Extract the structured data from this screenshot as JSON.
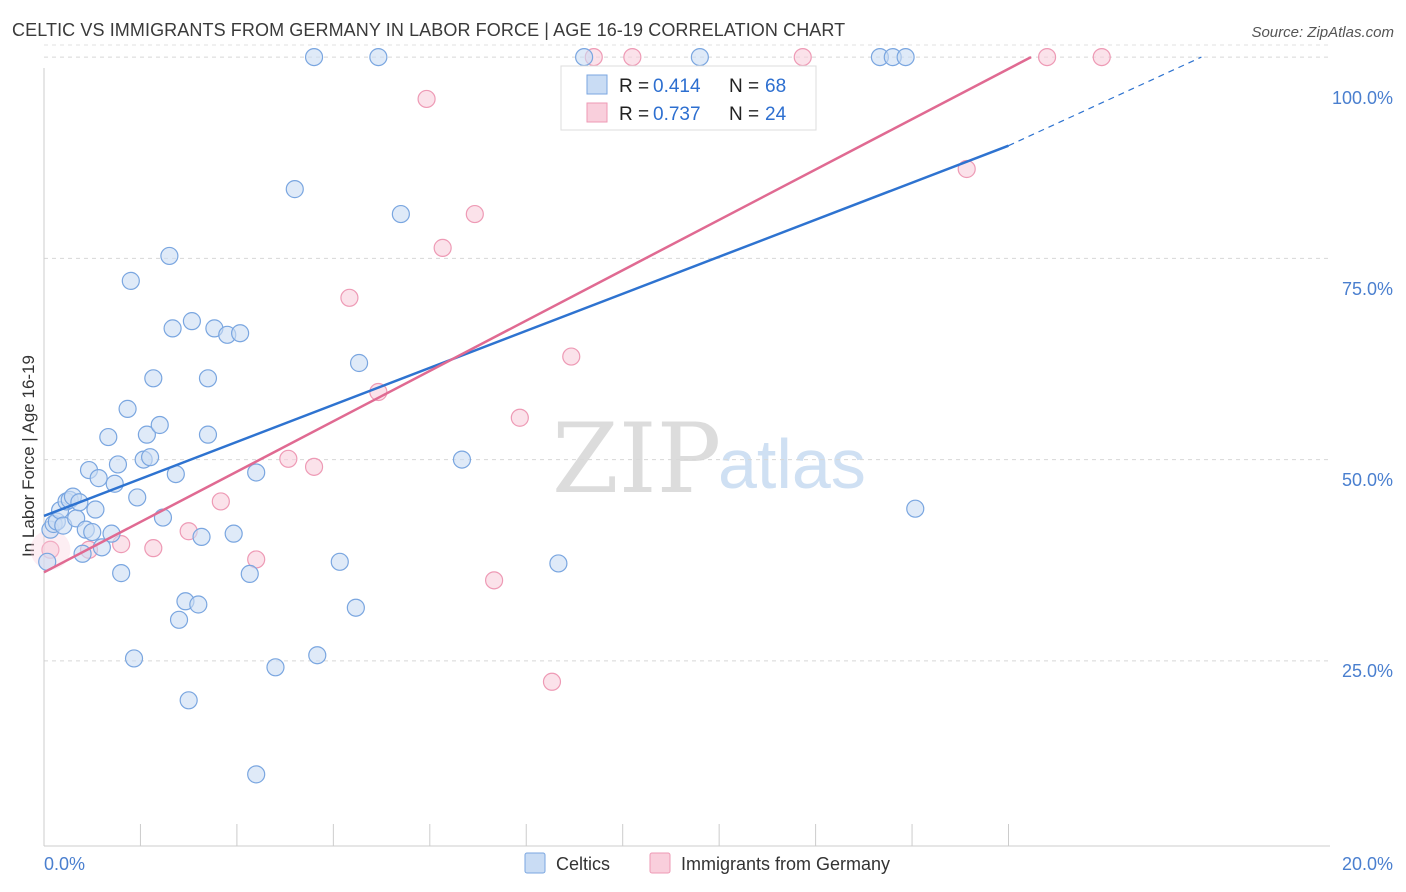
{
  "title": "CELTIC VS IMMIGRANTS FROM GERMANY IN LABOR FORCE | AGE 16-19 CORRELATION CHART",
  "source": "Source: ZipAtlas.com",
  "watermark": {
    "zip": "ZIP",
    "atlas": "atlas"
  },
  "legend": {
    "rows": [
      {
        "r_label": "R =",
        "r_value": "0.414",
        "n_label": "N =",
        "n_value": "68"
      },
      {
        "r_label": "R =",
        "r_value": "0.737",
        "n_label": "N =",
        "n_value": "24"
      }
    ]
  },
  "bottom_legend": [
    "Celtics",
    "Immigrants from Germany"
  ],
  "colors": {
    "celtics_fill": "#c9dcf4",
    "celtics_stroke": "#7aa6e0",
    "celtics_line": "#2e73d0",
    "germany_fill": "#f9cfdc",
    "germany_stroke": "#ee9ab5",
    "germany_line": "#e06a92"
  },
  "chart_data": {
    "type": "scatter",
    "title": "CELTIC VS IMMIGRANTS FROM GERMANY IN LABOR FORCE | AGE 16-19 CORRELATION CHART",
    "xlabel": "",
    "ylabel": "In Labor Force | Age 16-19",
    "xlim": [
      0,
      20
    ],
    "ylim": [
      2,
      102
    ],
    "x_tick_labels": [
      "0.0%",
      "20.0%"
    ],
    "y_ticks": [
      25,
      50,
      75,
      100
    ],
    "y_tick_labels": [
      "25.0%",
      "50.0%",
      "75.0%",
      "100.0%"
    ],
    "series": [
      {
        "name": "Celtics",
        "R": 0.414,
        "N": 68,
        "trend": {
          "x0": 0,
          "y0": 43.0,
          "x1": 15.0,
          "y1": 89.0,
          "dash_to_x": 18.0,
          "dash_to_y": 100.0
        },
        "points": [
          [
            0.05,
            37.3
          ],
          [
            0.1,
            41.3
          ],
          [
            0.15,
            42.0
          ],
          [
            0.2,
            42.3
          ],
          [
            0.25,
            43.7
          ],
          [
            0.3,
            41.8
          ],
          [
            0.35,
            44.8
          ],
          [
            0.4,
            45.0
          ],
          [
            0.45,
            45.4
          ],
          [
            0.5,
            42.7
          ],
          [
            0.55,
            44.7
          ],
          [
            0.6,
            38.3
          ],
          [
            0.65,
            41.3
          ],
          [
            0.7,
            48.7
          ],
          [
            0.75,
            41.0
          ],
          [
            0.8,
            43.8
          ],
          [
            0.85,
            47.7
          ],
          [
            0.9,
            39.1
          ],
          [
            1.0,
            52.8
          ],
          [
            1.05,
            40.8
          ],
          [
            1.1,
            47.0
          ],
          [
            1.15,
            49.4
          ],
          [
            1.2,
            35.9
          ],
          [
            1.3,
            56.3
          ],
          [
            1.35,
            72.2
          ],
          [
            1.4,
            25.3
          ],
          [
            1.45,
            45.3
          ],
          [
            1.55,
            50.0
          ],
          [
            1.6,
            53.1
          ],
          [
            1.65,
            50.3
          ],
          [
            1.7,
            60.1
          ],
          [
            1.8,
            54.3
          ],
          [
            1.85,
            42.8
          ],
          [
            1.95,
            75.3
          ],
          [
            2.0,
            66.3
          ],
          [
            2.05,
            48.2
          ],
          [
            2.1,
            30.1
          ],
          [
            2.2,
            32.4
          ],
          [
            2.25,
            20.1
          ],
          [
            2.3,
            67.2
          ],
          [
            2.4,
            32.0
          ],
          [
            2.45,
            40.4
          ],
          [
            2.55,
            53.1
          ],
          [
            2.55,
            60.1
          ],
          [
            2.65,
            66.3
          ],
          [
            2.85,
            65.5
          ],
          [
            2.95,
            40.8
          ],
          [
            3.05,
            65.7
          ],
          [
            3.2,
            35.8
          ],
          [
            3.3,
            10.9
          ],
          [
            3.3,
            48.4
          ],
          [
            3.6,
            24.2
          ],
          [
            3.9,
            83.6
          ],
          [
            4.2,
            100.0
          ],
          [
            4.25,
            25.7
          ],
          [
            4.6,
            37.3
          ],
          [
            4.85,
            31.6
          ],
          [
            4.9,
            62.0
          ],
          [
            5.2,
            100.0
          ],
          [
            5.55,
            80.5
          ],
          [
            6.5,
            50.0
          ],
          [
            8.0,
            37.1
          ],
          [
            8.4,
            100.0
          ],
          [
            10.2,
            100.0
          ],
          [
            13.0,
            100.0
          ],
          [
            13.2,
            100.0
          ],
          [
            13.4,
            100.0
          ],
          [
            13.55,
            43.9
          ]
        ]
      },
      {
        "name": "Immigrants from Germany",
        "R": 0.737,
        "N": 24,
        "trend": {
          "x0": 0,
          "y0": 36.0,
          "x1": 15.35,
          "y1": 100.0
        },
        "points": [
          [
            0.1,
            38.8
          ],
          [
            0.7,
            38.8
          ],
          [
            1.2,
            39.5
          ],
          [
            1.7,
            39.0
          ],
          [
            2.25,
            41.1
          ],
          [
            2.75,
            44.8
          ],
          [
            3.3,
            37.6
          ],
          [
            3.8,
            50.1
          ],
          [
            4.2,
            49.1
          ],
          [
            4.75,
            70.1
          ],
          [
            5.2,
            58.4
          ],
          [
            5.95,
            94.8
          ],
          [
            6.2,
            76.3
          ],
          [
            6.7,
            80.5
          ],
          [
            7.0,
            35.0
          ],
          [
            7.4,
            55.2
          ],
          [
            7.9,
            22.4
          ],
          [
            8.2,
            62.8
          ],
          [
            8.55,
            100.0
          ],
          [
            9.15,
            100.0
          ],
          [
            11.8,
            100.0
          ],
          [
            14.35,
            86.1
          ],
          [
            15.6,
            100.0
          ],
          [
            16.45,
            100.0
          ]
        ]
      }
    ]
  }
}
